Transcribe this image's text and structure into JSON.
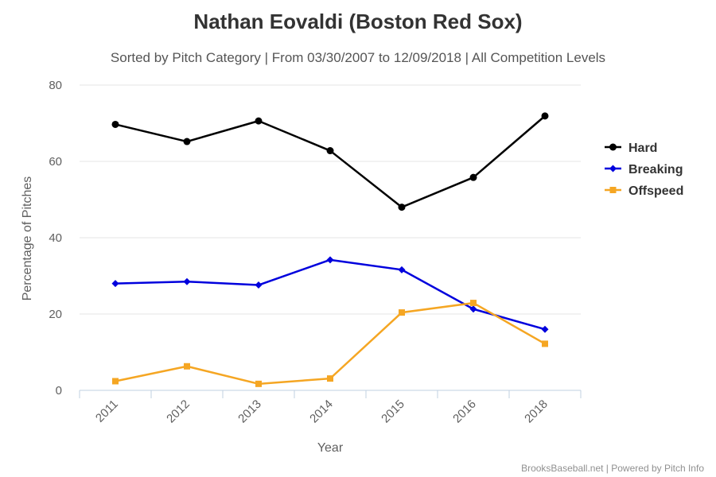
{
  "chart_data": {
    "type": "line",
    "title": "Nathan Eovaldi (Boston Red Sox)",
    "subtitle": "Sorted by Pitch Category | From 03/30/2007 to 12/09/2018 | All Competition Levels",
    "xlabel": "Year",
    "ylabel": "Percentage of Pitches",
    "ylim": [
      0,
      80
    ],
    "yticks": [
      "0",
      "20",
      "40",
      "60",
      "80"
    ],
    "categories": [
      "2011",
      "2012",
      "2013",
      "2014",
      "2015",
      "2016",
      "2018"
    ],
    "grid": true,
    "legend_position": "right",
    "series": [
      {
        "name": "Hard",
        "color": "#000000",
        "marker": "circle",
        "values": [
          69.7,
          65.2,
          70.6,
          62.8,
          48.0,
          55.8,
          71.9
        ]
      },
      {
        "name": "Breaking",
        "color": "#0000dd",
        "marker": "diamond",
        "values": [
          28.0,
          28.5,
          27.6,
          34.2,
          31.6,
          21.3,
          16.0
        ]
      },
      {
        "name": "Offspeed",
        "color": "#f5a623",
        "marker": "square",
        "values": [
          2.4,
          6.3,
          1.7,
          3.1,
          20.4,
          22.9,
          12.2
        ]
      }
    ],
    "credits": "BrooksBaseball.net | Powered by Pitch Info"
  }
}
